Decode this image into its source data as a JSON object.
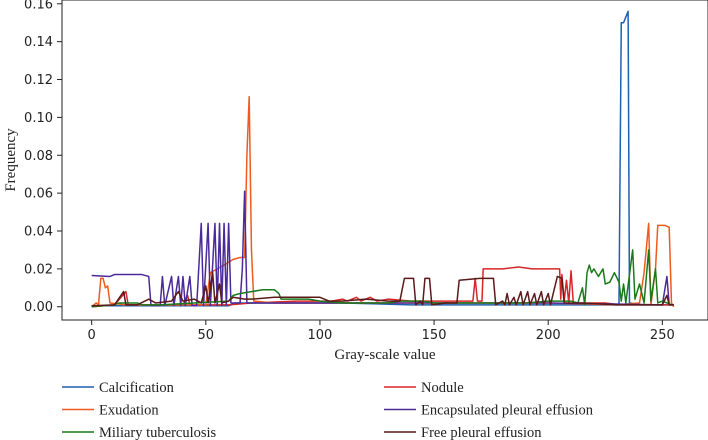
{
  "chart_data": {
    "type": "line",
    "xlabel": "Gray-scale value",
    "ylabel": "Frequency",
    "xlim": [
      -13,
      270
    ],
    "ylim": [
      -0.007,
      0.162
    ],
    "xticks": [
      "0",
      "50",
      "100",
      "150",
      "200",
      "250"
    ],
    "yticks": [
      "0.00",
      "0.02",
      "0.04",
      "0.06",
      "0.08",
      "0.10",
      "0.12",
      "0.14",
      "0.16"
    ],
    "grid": false,
    "legend_position": "bottom",
    "series": [
      {
        "name": "Calcification",
        "color": "#1f5fb0",
        "points": [
          [
            0,
            0.0005
          ],
          [
            60,
            0.0005
          ],
          [
            63,
            0.002
          ],
          [
            110,
            0.002
          ],
          [
            140,
            0.001
          ],
          [
            175,
            0.001
          ],
          [
            210,
            0.001
          ],
          [
            225,
            0.001
          ],
          [
            231,
            0.001
          ],
          [
            232,
            0.15
          ],
          [
            233,
            0.15
          ],
          [
            234,
            0.153
          ],
          [
            235,
            0.156
          ],
          [
            235.6,
            0.002
          ],
          [
            240,
            0.001
          ],
          [
            255,
            0.001
          ]
        ]
      },
      {
        "name": "Nodule",
        "color": "#d62728",
        "points": [
          [
            0,
            0
          ],
          [
            10,
            0.001
          ],
          [
            15,
            0.008
          ],
          [
            16,
            0.001
          ],
          [
            30,
            0.001
          ],
          [
            40,
            0.001
          ],
          [
            42,
            0.006
          ],
          [
            43,
            0.001
          ],
          [
            60,
            0.001
          ],
          [
            70,
            0.002
          ],
          [
            90,
            0.003
          ],
          [
            105,
            0.003
          ],
          [
            110,
            0.004
          ],
          [
            112,
            0.003
          ],
          [
            116,
            0.005
          ],
          [
            118,
            0.003
          ],
          [
            122,
            0.005
          ],
          [
            125,
            0.003
          ],
          [
            130,
            0.004
          ],
          [
            140,
            0.003
          ],
          [
            155,
            0.003
          ],
          [
            160,
            0.003
          ],
          [
            167,
            0.003
          ],
          [
            168,
            0.015
          ],
          [
            169,
            0.003
          ],
          [
            171,
            0.003
          ],
          [
            171.5,
            0.02
          ],
          [
            180,
            0.02
          ],
          [
            187,
            0.021
          ],
          [
            193,
            0.02
          ],
          [
            200,
            0.02
          ],
          [
            205,
            0.02
          ],
          [
            205.5,
            0.004
          ],
          [
            206,
            0.017
          ],
          [
            207,
            0.003
          ],
          [
            208,
            0.014
          ],
          [
            209,
            0.002
          ],
          [
            210,
            0.019
          ],
          [
            211,
            0.002
          ],
          [
            215,
            0.002
          ],
          [
            225,
            0.002
          ],
          [
            232,
            0.001
          ],
          [
            245,
            0.001
          ],
          [
            255,
            0.001
          ]
        ]
      },
      {
        "name": "Exudation",
        "color": "#f05a1e",
        "points": [
          [
            0,
            0
          ],
          [
            2,
            0.002
          ],
          [
            3,
            0.001
          ],
          [
            4,
            0.015
          ],
          [
            5,
            0.015
          ],
          [
            6,
            0.01
          ],
          [
            7,
            0.011
          ],
          [
            8,
            0.002
          ],
          [
            15,
            0.001
          ],
          [
            25,
            0.001
          ],
          [
            40,
            0.001
          ],
          [
            50,
            0.001
          ],
          [
            52,
            0.018
          ],
          [
            55,
            0.02
          ],
          [
            58,
            0.022
          ],
          [
            62,
            0.025
          ],
          [
            65,
            0.026
          ],
          [
            67,
            0.026
          ],
          [
            68,
            0.08
          ],
          [
            69,
            0.111
          ],
          [
            70,
            0.03
          ],
          [
            71,
            0.003
          ],
          [
            80,
            0.002
          ],
          [
            100,
            0.002
          ],
          [
            150,
            0.002
          ],
          [
            200,
            0.002
          ],
          [
            230,
            0.001
          ],
          [
            240,
            0.002
          ],
          [
            242,
            0.018
          ],
          [
            244,
            0.044
          ],
          [
            245,
            0.001
          ],
          [
            247,
            0.02
          ],
          [
            248,
            0.043
          ],
          [
            251,
            0.043
          ],
          [
            253,
            0.042
          ],
          [
            254,
            0.002
          ],
          [
            255,
            0
          ]
        ]
      },
      {
        "name": "Encapsulated pleural effusion",
        "color": "#4b2a9a",
        "points": [
          [
            0,
            0.0165
          ],
          [
            8,
            0.016
          ],
          [
            10,
            0.017
          ],
          [
            22,
            0.017
          ],
          [
            25,
            0.016
          ],
          [
            26,
            0.0005
          ],
          [
            30,
            0.0005
          ],
          [
            31,
            0.016
          ],
          [
            32,
            0.0005
          ],
          [
            35,
            0.016
          ],
          [
            36,
            0.0005
          ],
          [
            38,
            0.016
          ],
          [
            39,
            0.0005
          ],
          [
            40,
            0.016
          ],
          [
            41,
            0.0005
          ],
          [
            43,
            0.016
          ],
          [
            44,
            0.0005
          ],
          [
            46,
            0.0005
          ],
          [
            48,
            0.044
          ],
          [
            49,
            0.0005
          ],
          [
            51,
            0.044
          ],
          [
            52,
            0.0005
          ],
          [
            54,
            0.044
          ],
          [
            55,
            0.0005
          ],
          [
            56,
            0.044
          ],
          [
            57,
            0.0005
          ],
          [
            58,
            0.044
          ],
          [
            59,
            0.0005
          ],
          [
            60,
            0.044
          ],
          [
            61,
            0.002
          ],
          [
            65,
            0.002
          ],
          [
            66,
            0.02
          ],
          [
            67,
            0.061
          ],
          [
            68,
            0.002
          ],
          [
            75,
            0.002
          ],
          [
            100,
            0.002
          ],
          [
            150,
            0.002
          ],
          [
            200,
            0.002
          ],
          [
            250,
            0.001
          ],
          [
            252,
            0.016
          ],
          [
            253,
            0.001
          ],
          [
            255,
            0.001
          ]
        ]
      },
      {
        "name": "Miliary tuberculosis",
        "color": "#1a7a1a",
        "points": [
          [
            0,
            0
          ],
          [
            10,
            0.001
          ],
          [
            12,
            0.002
          ],
          [
            20,
            0.002
          ],
          [
            22,
            0.001
          ],
          [
            30,
            0.001
          ],
          [
            45,
            0.002
          ],
          [
            60,
            0.003
          ],
          [
            62,
            0.006
          ],
          [
            65,
            0.007
          ],
          [
            70,
            0.008
          ],
          [
            75,
            0.009
          ],
          [
            80,
            0.009
          ],
          [
            82,
            0.007
          ],
          [
            83,
            0.004
          ],
          [
            95,
            0.004
          ],
          [
            100,
            0.003
          ],
          [
            110,
            0.002
          ],
          [
            130,
            0.002
          ],
          [
            135,
            0.003
          ],
          [
            145,
            0.003
          ],
          [
            150,
            0.002
          ],
          [
            170,
            0.002
          ],
          [
            190,
            0.002
          ],
          [
            200,
            0.003
          ],
          [
            210,
            0.003
          ],
          [
            213,
            0.002
          ],
          [
            215,
            0.01
          ],
          [
            216,
            0.001
          ],
          [
            217,
            0.018
          ],
          [
            218,
            0.022
          ],
          [
            219,
            0.018
          ],
          [
            220,
            0.02
          ],
          [
            222,
            0.016
          ],
          [
            224,
            0.02
          ],
          [
            225,
            0.012
          ],
          [
            227,
            0.013
          ],
          [
            229,
            0.018
          ],
          [
            231,
            0.013
          ],
          [
            232,
            0.003
          ],
          [
            233,
            0.012
          ],
          [
            234,
            0.002
          ],
          [
            237,
            0.03
          ],
          [
            238,
            0.004
          ],
          [
            240,
            0.012
          ],
          [
            242,
            0.002
          ],
          [
            244,
            0.03
          ],
          [
            245,
            0.003
          ],
          [
            247,
            0.02
          ],
          [
            248,
            0.002
          ],
          [
            250,
            0.003
          ],
          [
            252,
            0.002
          ],
          [
            254,
            0.001
          ]
        ]
      },
      {
        "name": "Free pleural effusion",
        "color": "#5a1a1a",
        "points": [
          [
            0,
            0.0005
          ],
          [
            10,
            0.001
          ],
          [
            14,
            0.008
          ],
          [
            15,
            0.001
          ],
          [
            20,
            0.001
          ],
          [
            25,
            0.004
          ],
          [
            28,
            0.002
          ],
          [
            35,
            0.003
          ],
          [
            38,
            0.008
          ],
          [
            40,
            0.003
          ],
          [
            45,
            0.004
          ],
          [
            48,
            0.002
          ],
          [
            50,
            0.011
          ],
          [
            51,
            0.002
          ],
          [
            53,
            0.018
          ],
          [
            54,
            0.002
          ],
          [
            56,
            0.012
          ],
          [
            57,
            0.002
          ],
          [
            60,
            0.003
          ],
          [
            62,
            0.005
          ],
          [
            67,
            0.004
          ],
          [
            70,
            0.004
          ],
          [
            80,
            0.005
          ],
          [
            90,
            0.005
          ],
          [
            100,
            0.005
          ],
          [
            104,
            0.003
          ],
          [
            110,
            0.003
          ],
          [
            120,
            0.004
          ],
          [
            130,
            0.003
          ],
          [
            135,
            0.003
          ],
          [
            137,
            0.015
          ],
          [
            141,
            0.015
          ],
          [
            142,
            0.001
          ],
          [
            144,
            0.003
          ],
          [
            145,
            0.001
          ],
          [
            146,
            0.015
          ],
          [
            148,
            0.015
          ],
          [
            149,
            0.001
          ],
          [
            155,
            0.002
          ],
          [
            160,
            0.002
          ],
          [
            161,
            0.014
          ],
          [
            170,
            0.015
          ],
          [
            176,
            0.015
          ],
          [
            177,
            0.001
          ],
          [
            180,
            0.003
          ],
          [
            181,
            0.001
          ],
          [
            182,
            0.007
          ],
          [
            183,
            0.001
          ],
          [
            185,
            0.005
          ],
          [
            186,
            0.001
          ],
          [
            188,
            0.008
          ],
          [
            189,
            0.001
          ],
          [
            191,
            0.008
          ],
          [
            192,
            0.001
          ],
          [
            194,
            0.007
          ],
          [
            195,
            0.001
          ],
          [
            197,
            0.008
          ],
          [
            198,
            0.001
          ],
          [
            200,
            0.007
          ],
          [
            201,
            0.001
          ],
          [
            204,
            0.016
          ],
          [
            206,
            0.015
          ],
          [
            207,
            0.002
          ],
          [
            215,
            0.002
          ],
          [
            230,
            0.001
          ],
          [
            240,
            0.001
          ],
          [
            250,
            0.001
          ],
          [
            252,
            0.006
          ],
          [
            253,
            0.001
          ],
          [
            255,
            0.001
          ]
        ]
      }
    ],
    "legend": {
      "left": [
        "Calcification",
        "Exudation",
        "Miliary tuberculosis"
      ],
      "right": [
        "Nodule",
        "Encapsulated pleural effusion",
        "Free pleural effusion"
      ]
    }
  }
}
